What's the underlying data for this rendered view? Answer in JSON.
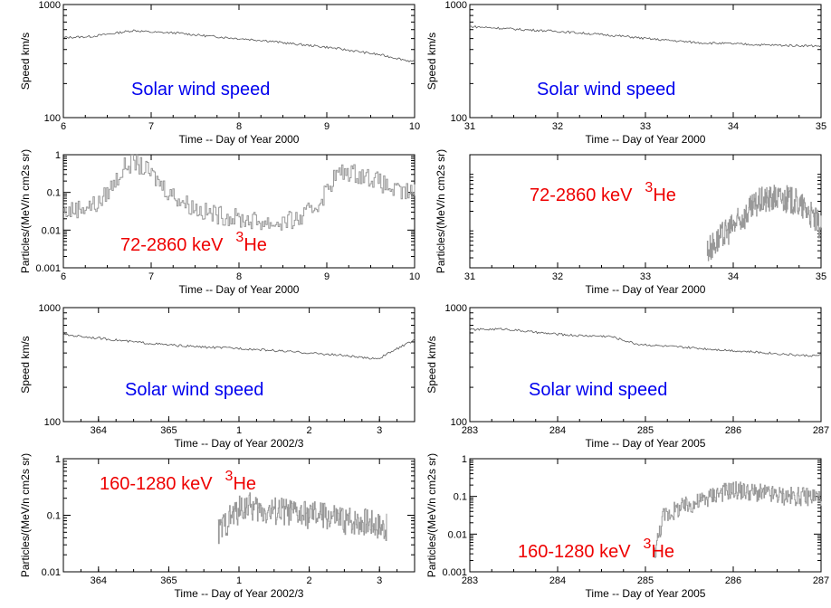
{
  "chart_data": [
    {
      "id": "p1",
      "type": "line",
      "scale": "log",
      "annotation": {
        "text": "Solar wind speed",
        "color": "#0000ee"
      },
      "xlabel": "Time  --  Day of Year  2000",
      "ylabel": "Speed  km/s",
      "xlim": [
        6,
        10
      ],
      "ylim": [
        100,
        1000
      ],
      "xticks": [
        "6",
        "7",
        "8",
        "9",
        "10"
      ],
      "yticks": [
        "100",
        "1000"
      ],
      "points": [
        [
          6.0,
          510
        ],
        [
          6.3,
          520
        ],
        [
          6.6,
          560
        ],
        [
          6.8,
          590
        ],
        [
          7.0,
          570
        ],
        [
          7.3,
          560
        ],
        [
          7.6,
          530
        ],
        [
          8.0,
          500
        ],
        [
          8.3,
          480
        ],
        [
          8.6,
          450
        ],
        [
          9.0,
          420
        ],
        [
          9.3,
          390
        ],
        [
          9.6,
          360
        ],
        [
          9.8,
          335
        ],
        [
          10.0,
          310
        ]
      ]
    },
    {
      "id": "p2",
      "type": "line",
      "scale": "log",
      "annotation": {
        "text": "Solar wind speed",
        "color": "#0000ee"
      },
      "xlabel": "Time  --  Day of Year  2000",
      "ylabel": "Speed  km/s",
      "xlim": [
        31,
        35
      ],
      "ylim": [
        100,
        1000
      ],
      "xticks": [
        "31",
        "32",
        "33",
        "34",
        "35"
      ],
      "yticks": [
        "100",
        "1000"
      ],
      "points": [
        [
          31.0,
          640
        ],
        [
          31.3,
          620
        ],
        [
          31.6,
          600
        ],
        [
          32.0,
          580
        ],
        [
          32.4,
          550
        ],
        [
          32.8,
          520
        ],
        [
          33.0,
          500
        ],
        [
          33.3,
          480
        ],
        [
          33.6,
          460
        ],
        [
          34.0,
          450
        ],
        [
          34.3,
          440
        ],
        [
          34.6,
          435
        ],
        [
          35.0,
          430
        ]
      ]
    },
    {
      "id": "p3",
      "type": "line",
      "scale": "log",
      "annotation": {
        "text": "72-2860 keV",
        "isotope": "3",
        "element": "He",
        "color": "#ee0000"
      },
      "xlabel": "Time  --  Day of Year  2000",
      "ylabel": "Particles/(MeV/n cm2s sr)",
      "xlim": [
        6,
        10
      ],
      "ylim": [
        0.001,
        1
      ],
      "xticks": [
        "6",
        "7",
        "8",
        "9",
        "10"
      ],
      "yticks": [
        "0.001",
        "0.01",
        "0.1",
        "1"
      ],
      "points": [
        [
          6.0,
          0.03
        ],
        [
          6.2,
          0.04
        ],
        [
          6.4,
          0.05
        ],
        [
          6.55,
          0.15
        ],
        [
          6.7,
          0.5
        ],
        [
          6.8,
          0.65
        ],
        [
          6.9,
          0.45
        ],
        [
          7.0,
          0.3
        ],
        [
          7.2,
          0.1
        ],
        [
          7.4,
          0.05
        ],
        [
          7.6,
          0.03
        ],
        [
          8.0,
          0.02
        ],
        [
          8.4,
          0.015
        ],
        [
          8.7,
          0.02
        ],
        [
          8.9,
          0.05
        ],
        [
          9.1,
          0.3
        ],
        [
          9.25,
          0.35
        ],
        [
          9.5,
          0.25
        ],
        [
          9.8,
          0.1
        ],
        [
          10.0,
          0.1
        ]
      ]
    },
    {
      "id": "p4",
      "type": "line",
      "scale": "log",
      "annotation": {
        "text": "72-2860 keV",
        "isotope": "3",
        "element": "He",
        "color": "#ee0000"
      },
      "xlabel": "Time  --  Day of Year  2000",
      "ylabel": "Particles/(MeV/n cm2s sr)",
      "xlim": [
        31,
        35
      ],
      "ylim": [
        0.02,
        2
      ],
      "xticks": [
        "31",
        "32",
        "33",
        "34",
        "35"
      ],
      "yticks": [],
      "points": [
        [
          33.7,
          0.04
        ],
        [
          33.9,
          0.08
        ],
        [
          34.1,
          0.15
        ],
        [
          34.3,
          0.3
        ],
        [
          34.5,
          0.35
        ],
        [
          34.7,
          0.3
        ],
        [
          34.85,
          0.2
        ],
        [
          35.0,
          0.1
        ]
      ]
    },
    {
      "id": "p5",
      "type": "line",
      "scale": "log",
      "annotation": {
        "text": "Solar wind speed",
        "color": "#0000ee"
      },
      "xlabel": "Time -- Day of Year  2002/3",
      "ylabel": "Speed  km/s",
      "xlim": [
        363.5,
        368.5
      ],
      "ylim": [
        100,
        1000
      ],
      "xticks": [
        "364",
        "365",
        "1",
        "2",
        "3"
      ],
      "yticks": [
        "100",
        "1000"
      ],
      "points": [
        [
          363.5,
          580
        ],
        [
          364.0,
          540
        ],
        [
          364.5,
          500
        ],
        [
          365.0,
          470
        ],
        [
          365.5,
          450
        ],
        [
          366.0,
          440
        ],
        [
          366.5,
          420
        ],
        [
          367.0,
          400
        ],
        [
          367.5,
          380
        ],
        [
          367.8,
          360
        ],
        [
          368.0,
          360
        ],
        [
          368.2,
          420
        ],
        [
          368.5,
          520
        ]
      ]
    },
    {
      "id": "p6",
      "type": "line",
      "scale": "log",
      "annotation": {
        "text": "Solar wind speed",
        "color": "#0000ee"
      },
      "xlabel": "Time --  Day of Year 2005",
      "ylabel": "Speed  km/s",
      "xlim": [
        283,
        287
      ],
      "ylim": [
        100,
        1000
      ],
      "xticks": [
        "283",
        "284",
        "285",
        "286",
        "287"
      ],
      "yticks": [
        "100",
        "1000"
      ],
      "points": [
        [
          283.0,
          640
        ],
        [
          283.4,
          650
        ],
        [
          283.8,
          600
        ],
        [
          284.2,
          570
        ],
        [
          284.6,
          560
        ],
        [
          284.9,
          480
        ],
        [
          285.2,
          460
        ],
        [
          285.6,
          440
        ],
        [
          286.0,
          420
        ],
        [
          286.4,
          400
        ],
        [
          286.8,
          380
        ],
        [
          287.0,
          380
        ]
      ]
    },
    {
      "id": "p7",
      "type": "line",
      "scale": "log",
      "annotation": {
        "text": "160-1280 keV",
        "isotope": "3",
        "element": "He",
        "color": "#ee0000"
      },
      "xlabel": "Time -- Day of Year  2002/3",
      "ylabel": "Particles/(MeV/n cm2s sr)",
      "xlim": [
        363.5,
        368.5
      ],
      "ylim": [
        0.01,
        1
      ],
      "xticks": [
        "364",
        "365",
        "1",
        "2",
        "3"
      ],
      "yticks": [
        "0.01",
        "0.1",
        "1"
      ],
      "points": [
        [
          365.7,
          0.05
        ],
        [
          365.9,
          0.1
        ],
        [
          366.1,
          0.15
        ],
        [
          366.3,
          0.12
        ],
        [
          366.6,
          0.12
        ],
        [
          366.9,
          0.1
        ],
        [
          367.2,
          0.1
        ],
        [
          367.5,
          0.08
        ],
        [
          367.8,
          0.08
        ],
        [
          368.1,
          0.06
        ]
      ]
    },
    {
      "id": "p8",
      "type": "line",
      "scale": "log",
      "annotation": {
        "text": "160-1280 keV",
        "isotope": "3",
        "element": "He",
        "color": "#ee0000"
      },
      "xlabel": "Time --  Day of Year 2005",
      "ylabel": "Particles/(MeV/n cm2s sr)",
      "xlim": [
        283,
        287
      ],
      "ylim": [
        0.001,
        1
      ],
      "xticks": [
        "283",
        "284",
        "285",
        "286",
        "287"
      ],
      "yticks": [
        "0.001",
        "0.01",
        "0.1",
        "1"
      ],
      "points": [
        [
          285.1,
          0.003
        ],
        [
          285.2,
          0.03
        ],
        [
          285.4,
          0.05
        ],
        [
          285.6,
          0.07
        ],
        [
          285.8,
          0.12
        ],
        [
          286.0,
          0.15
        ],
        [
          286.3,
          0.12
        ],
        [
          286.6,
          0.1
        ],
        [
          287.0,
          0.1
        ]
      ]
    }
  ]
}
